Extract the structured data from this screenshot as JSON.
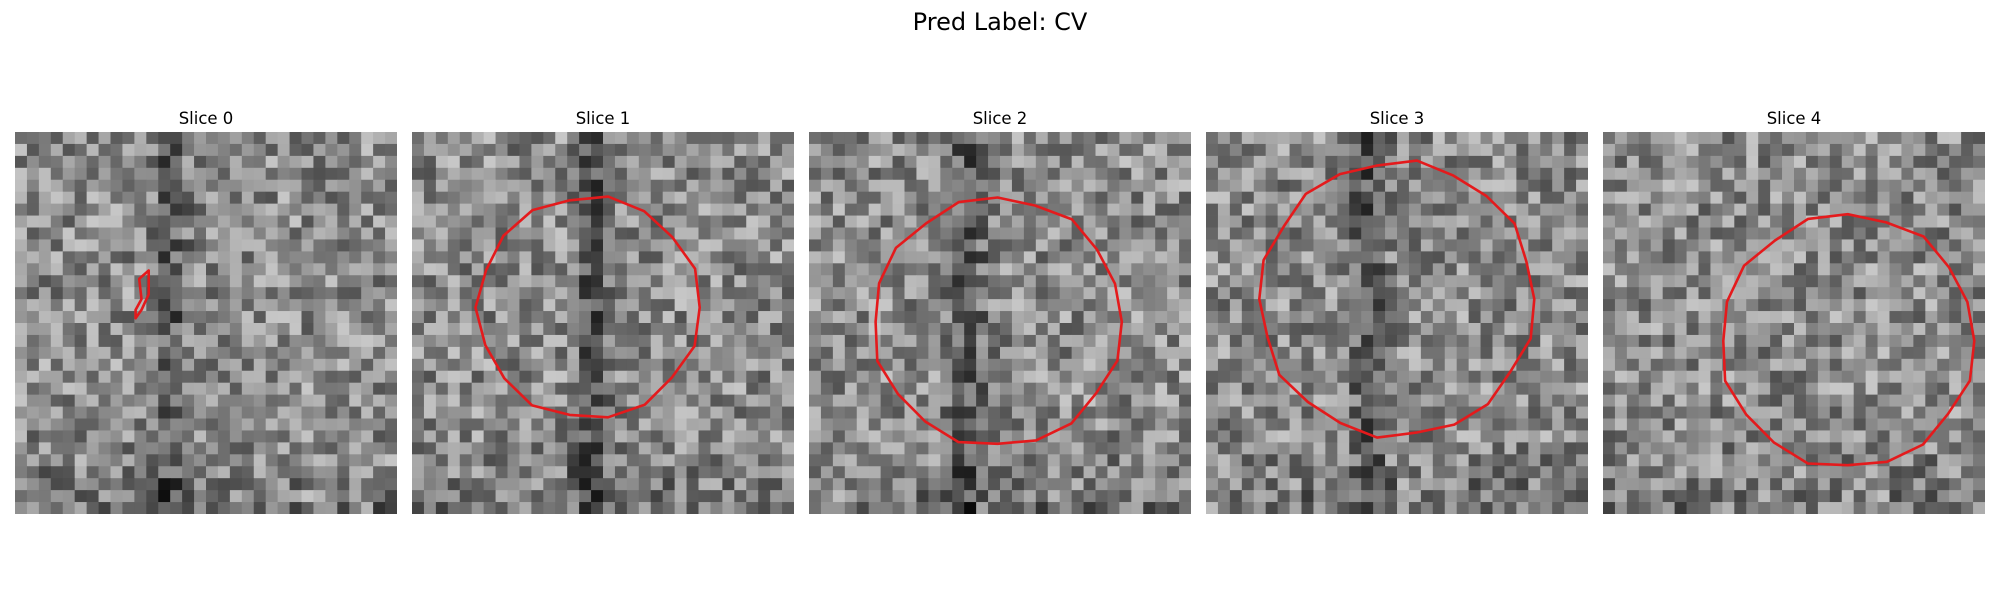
{
  "figure": {
    "title": "Pred Label: CV",
    "contour_color": "#e41a1c",
    "slices": [
      {
        "label": "Slice 0"
      },
      {
        "label": "Slice 1"
      },
      {
        "label": "Slice 2"
      },
      {
        "label": "Slice 3"
      },
      {
        "label": "Slice 4"
      }
    ]
  }
}
